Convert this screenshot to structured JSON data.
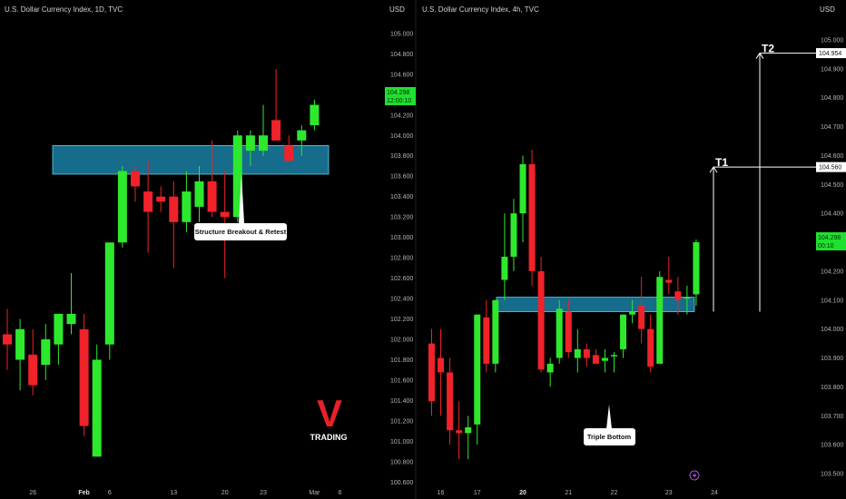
{
  "colors": {
    "up": "#2ee82e",
    "down": "#f0222a",
    "zone": "#1a7fa3",
    "background": "#000000"
  },
  "watermark": {
    "letter": "V",
    "word": "TRADING"
  },
  "chart_data": [
    {
      "type": "candlestick",
      "title": "U.S. Dollar Currency Index, 1D, TVC",
      "ylabel": "USD",
      "ylim": [
        100.55,
        105.15
      ],
      "y_ticks": [
        "105.000",
        "104.800",
        "104.600",
        "104.400",
        "104.200",
        "104.000",
        "103.800",
        "103.600",
        "103.400",
        "103.200",
        "103.000",
        "102.800",
        "102.600",
        "102.400",
        "102.200",
        "102.000",
        "101.800",
        "101.600",
        "101.400",
        "101.200",
        "101.000",
        "100.800",
        "100.600"
      ],
      "x_ticks": [
        {
          "label": "26",
          "index": 2,
          "bold": false
        },
        {
          "label": "Feb",
          "index": 6,
          "bold": true
        },
        {
          "label": "6",
          "index": 8,
          "bold": false
        },
        {
          "label": "13",
          "index": 13,
          "bold": false
        },
        {
          "label": "20",
          "index": 17,
          "bold": false
        },
        {
          "label": "23",
          "index": 20,
          "bold": false
        },
        {
          "label": "Mar",
          "index": 24,
          "bold": false
        },
        {
          "label": "6",
          "index": 26,
          "bold": false
        }
      ],
      "last_price": "104.298",
      "countdown": "12:00:10",
      "candles": [
        {
          "o": 102.05,
          "h": 102.3,
          "l": 101.7,
          "c": 101.95
        },
        {
          "o": 101.8,
          "h": 102.2,
          "l": 101.5,
          "c": 102.1
        },
        {
          "o": 101.85,
          "h": 102.1,
          "l": 101.45,
          "c": 101.55
        },
        {
          "o": 101.75,
          "h": 102.15,
          "l": 101.6,
          "c": 102.0
        },
        {
          "o": 101.95,
          "h": 102.25,
          "l": 101.75,
          "c": 102.25
        },
        {
          "o": 102.15,
          "h": 102.65,
          "l": 102.05,
          "c": 102.25
        },
        {
          "o": 102.1,
          "h": 102.25,
          "l": 101.05,
          "c": 101.15
        },
        {
          "o": 100.85,
          "h": 101.95,
          "l": 100.85,
          "c": 101.8
        },
        {
          "o": 101.95,
          "h": 102.95,
          "l": 101.8,
          "c": 102.95
        },
        {
          "o": 102.95,
          "h": 103.7,
          "l": 102.9,
          "c": 103.65
        },
        {
          "o": 103.65,
          "h": 103.7,
          "l": 103.35,
          "c": 103.5
        },
        {
          "o": 103.45,
          "h": 103.75,
          "l": 102.85,
          "c": 103.25
        },
        {
          "o": 103.4,
          "h": 103.5,
          "l": 103.25,
          "c": 103.35
        },
        {
          "o": 103.4,
          "h": 103.55,
          "l": 102.7,
          "c": 103.15
        },
        {
          "o": 103.15,
          "h": 103.65,
          "l": 103.05,
          "c": 103.45
        },
        {
          "o": 103.3,
          "h": 103.7,
          "l": 103.15,
          "c": 103.55
        },
        {
          "o": 103.55,
          "h": 103.95,
          "l": 103.2,
          "c": 103.25
        },
        {
          "o": 103.25,
          "h": 103.65,
          "l": 102.6,
          "c": 103.2
        },
        {
          "o": 103.2,
          "h": 104.05,
          "l": 103.15,
          "c": 104.0
        },
        {
          "o": 103.85,
          "h": 104.05,
          "l": 103.7,
          "c": 104.0
        },
        {
          "o": 103.85,
          "h": 104.3,
          "l": 103.8,
          "c": 104.0
        },
        {
          "o": 104.15,
          "h": 104.65,
          "l": 103.95,
          "c": 103.95
        },
        {
          "o": 103.9,
          "h": 104.0,
          "l": 103.75,
          "c": 103.75
        },
        {
          "o": 103.95,
          "h": 104.1,
          "l": 103.8,
          "c": 104.05
        },
        {
          "o": 104.1,
          "h": 104.35,
          "l": 104.05,
          "c": 104.3
        }
      ],
      "zone": {
        "low": 103.62,
        "high": 103.9
      },
      "annotations": [
        {
          "text": "Structure Breakout & Retest"
        }
      ]
    },
    {
      "type": "candlestick",
      "title": "U.S. Dollar Currency Index, 4h, TVC",
      "ylabel": "USD",
      "ylim": [
        103.453,
        105.075
      ],
      "y_ticks": [
        "105.000",
        "104.900",
        "104.800",
        "104.700",
        "104.600",
        "104.500",
        "104.400",
        "104.300",
        "104.200",
        "104.100",
        "104.000",
        "103.900",
        "103.800",
        "103.700",
        "103.600",
        "103.500"
      ],
      "x_ticks": [
        {
          "label": "16",
          "index": 1,
          "bold": false
        },
        {
          "label": "17",
          "index": 5,
          "bold": false
        },
        {
          "label": "20",
          "index": 10,
          "bold": true
        },
        {
          "label": "21",
          "index": 15,
          "bold": false
        },
        {
          "label": "22",
          "index": 20,
          "bold": false
        },
        {
          "label": "23",
          "index": 26,
          "bold": false
        },
        {
          "label": "24",
          "index": 31,
          "bold": false
        }
      ],
      "last_price": "104.298",
      "countdown": "00:10",
      "candles": [
        {
          "o": 103.95,
          "h": 104.0,
          "l": 103.7,
          "c": 103.75
        },
        {
          "o": 103.9,
          "h": 104.0,
          "l": 103.7,
          "c": 103.85
        },
        {
          "o": 103.85,
          "h": 103.9,
          "l": 103.6,
          "c": 103.65
        },
        {
          "o": 103.65,
          "h": 103.75,
          "l": 103.55,
          "c": 103.64
        },
        {
          "o": 103.64,
          "h": 103.7,
          "l": 103.55,
          "c": 103.66
        },
        {
          "o": 103.67,
          "h": 104.05,
          "l": 103.6,
          "c": 104.05
        },
        {
          "o": 104.04,
          "h": 104.1,
          "l": 103.85,
          "c": 103.88
        },
        {
          "o": 103.88,
          "h": 104.1,
          "l": 103.85,
          "c": 104.1
        },
        {
          "o": 104.17,
          "h": 104.4,
          "l": 104.1,
          "c": 104.25
        },
        {
          "o": 104.25,
          "h": 104.45,
          "l": 104.2,
          "c": 104.4
        },
        {
          "o": 104.4,
          "h": 104.6,
          "l": 104.3,
          "c": 104.57
        },
        {
          "o": 104.57,
          "h": 104.62,
          "l": 104.15,
          "c": 104.2
        },
        {
          "o": 104.2,
          "h": 104.25,
          "l": 103.85,
          "c": 103.86
        },
        {
          "o": 103.85,
          "h": 103.9,
          "l": 103.8,
          "c": 103.88
        },
        {
          "o": 103.9,
          "h": 104.1,
          "l": 103.88,
          "c": 104.07
        },
        {
          "o": 104.06,
          "h": 104.1,
          "l": 103.9,
          "c": 103.92
        },
        {
          "o": 103.9,
          "h": 104.0,
          "l": 103.85,
          "c": 103.93
        },
        {
          "o": 103.93,
          "h": 103.95,
          "l": 103.87,
          "c": 103.9
        },
        {
          "o": 103.91,
          "h": 103.93,
          "l": 103.88,
          "c": 103.88
        },
        {
          "o": 103.89,
          "h": 103.93,
          "l": 103.85,
          "c": 103.9
        },
        {
          "o": 103.91,
          "h": 103.92,
          "l": 103.85,
          "c": 103.91
        },
        {
          "o": 103.93,
          "h": 104.05,
          "l": 103.9,
          "c": 104.05
        },
        {
          "o": 104.05,
          "h": 104.1,
          "l": 104.02,
          "c": 104.06
        },
        {
          "o": 104.08,
          "h": 104.18,
          "l": 103.95,
          "c": 104.0
        },
        {
          "o": 104.0,
          "h": 104.05,
          "l": 103.85,
          "c": 103.87
        },
        {
          "o": 103.88,
          "h": 104.2,
          "l": 103.88,
          "c": 104.18
        },
        {
          "o": 104.17,
          "h": 104.25,
          "l": 104.12,
          "c": 104.16
        },
        {
          "o": 104.13,
          "h": 104.18,
          "l": 104.05,
          "c": 104.1
        },
        {
          "o": 104.11,
          "h": 104.15,
          "l": 104.05,
          "c": 104.11
        },
        {
          "o": 104.12,
          "h": 104.31,
          "l": 104.08,
          "c": 104.3
        }
      ],
      "zone": {
        "low": 104.06,
        "high": 104.11
      },
      "targets": [
        {
          "label": "T1",
          "value": 104.56,
          "price_tag": "104.560"
        },
        {
          "label": "T2",
          "value": 104.954,
          "price_tag": "104.954"
        }
      ],
      "annotations": [
        {
          "text": "Triple Bottom"
        }
      ]
    }
  ]
}
